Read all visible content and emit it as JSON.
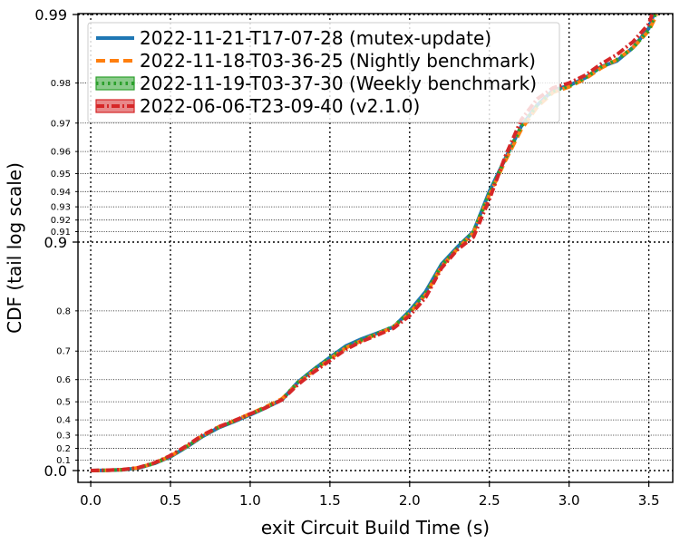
{
  "chart_data": {
    "type": "line",
    "xlabel": "exit Circuit Build Time (s)",
    "ylabel": "CDF (tail log scale)",
    "xlim": [
      -0.08,
      3.65
    ],
    "y_scale": "tail-log",
    "y_range": [
      0.0,
      0.99
    ],
    "x_ticks": [
      "0.0",
      "0.5",
      "1.0",
      "1.5",
      "2.0",
      "2.5",
      "3.0",
      "3.5"
    ],
    "x_tick_values": [
      0.0,
      0.5,
      1.0,
      1.5,
      2.0,
      2.5,
      3.0,
      3.5
    ],
    "y_major_ticks": [
      {
        "value": 0.0,
        "label": "0.0"
      },
      {
        "value": 0.9,
        "label": "0.9"
      },
      {
        "value": 0.99,
        "label": "0.99"
      }
    ],
    "y_minor_ticks": [
      {
        "value": 0.1,
        "label": "0.1"
      },
      {
        "value": 0.2,
        "label": "0.2"
      },
      {
        "value": 0.3,
        "label": "0.3"
      },
      {
        "value": 0.4,
        "label": "0.4"
      },
      {
        "value": 0.5,
        "label": "0.5"
      },
      {
        "value": 0.6,
        "label": "0.6"
      },
      {
        "value": 0.7,
        "label": "0.7"
      },
      {
        "value": 0.8,
        "label": "0.8"
      },
      {
        "value": 0.91,
        "label": "0.91"
      },
      {
        "value": 0.92,
        "label": "0.92"
      },
      {
        "value": 0.93,
        "label": "0.93"
      },
      {
        "value": 0.94,
        "label": "0.94"
      },
      {
        "value": 0.95,
        "label": "0.95"
      },
      {
        "value": 0.96,
        "label": "0.96"
      },
      {
        "value": 0.97,
        "label": "0.97"
      },
      {
        "value": 0.98,
        "label": "0.98"
      }
    ],
    "grid": true,
    "legend_position": "top-left",
    "series": [
      {
        "name": "2022-11-21-T17-07-28 (mutex-update)",
        "color": "#1f77b4",
        "style": "solid",
        "points": [
          [
            0.0,
            0.0
          ],
          [
            0.1,
            0.003
          ],
          [
            0.2,
            0.008
          ],
          [
            0.3,
            0.025
          ],
          [
            0.4,
            0.07
          ],
          [
            0.5,
            0.13
          ],
          [
            0.6,
            0.21
          ],
          [
            0.7,
            0.29
          ],
          [
            0.8,
            0.35
          ],
          [
            0.9,
            0.39
          ],
          [
            1.0,
            0.43
          ],
          [
            1.1,
            0.47
          ],
          [
            1.2,
            0.51
          ],
          [
            1.3,
            0.59
          ],
          [
            1.4,
            0.64
          ],
          [
            1.5,
            0.68
          ],
          [
            1.6,
            0.715
          ],
          [
            1.7,
            0.735
          ],
          [
            1.8,
            0.75
          ],
          [
            1.9,
            0.765
          ],
          [
            2.0,
            0.8
          ],
          [
            2.1,
            0.835
          ],
          [
            2.2,
            0.875
          ],
          [
            2.3,
            0.895
          ],
          [
            2.4,
            0.91
          ],
          [
            2.5,
            0.94
          ],
          [
            2.6,
            0.957
          ],
          [
            2.7,
            0.969
          ],
          [
            2.8,
            0.975
          ],
          [
            2.9,
            0.9785
          ],
          [
            3.0,
            0.9795
          ],
          [
            3.1,
            0.981
          ],
          [
            3.2,
            0.983
          ],
          [
            3.3,
            0.984
          ],
          [
            3.4,
            0.986
          ],
          [
            3.5,
            0.9885
          ],
          [
            3.53,
            0.99
          ]
        ]
      },
      {
        "name": "2022-11-18-T03-36-25 (Nightly benchmark)",
        "color": "#ff7f0e",
        "style": "dashed",
        "points": [
          [
            0.0,
            0.0
          ],
          [
            0.1,
            0.003
          ],
          [
            0.2,
            0.009
          ],
          [
            0.3,
            0.027
          ],
          [
            0.4,
            0.072
          ],
          [
            0.5,
            0.135
          ],
          [
            0.6,
            0.215
          ],
          [
            0.7,
            0.295
          ],
          [
            0.8,
            0.355
          ],
          [
            0.9,
            0.395
          ],
          [
            1.0,
            0.435
          ],
          [
            1.1,
            0.475
          ],
          [
            1.2,
            0.515
          ],
          [
            1.3,
            0.585
          ],
          [
            1.4,
            0.635
          ],
          [
            1.5,
            0.675
          ],
          [
            1.6,
            0.71
          ],
          [
            1.7,
            0.73
          ],
          [
            1.8,
            0.748
          ],
          [
            1.9,
            0.765
          ],
          [
            2.0,
            0.795
          ],
          [
            2.1,
            0.83
          ],
          [
            2.2,
            0.872
          ],
          [
            2.3,
            0.893
          ],
          [
            2.4,
            0.909
          ],
          [
            2.5,
            0.938
          ],
          [
            2.6,
            0.956
          ],
          [
            2.7,
            0.968
          ],
          [
            2.8,
            0.9745
          ],
          [
            2.9,
            0.978
          ],
          [
            3.0,
            0.9792
          ],
          [
            3.1,
            0.9808
          ],
          [
            3.2,
            0.9828
          ],
          [
            3.3,
            0.9842
          ],
          [
            3.4,
            0.986
          ],
          [
            3.5,
            0.9882
          ],
          [
            3.55,
            0.99
          ]
        ]
      },
      {
        "name": "2022-11-19-T03-37-30 (Weekly benchmark)",
        "color": "#2ca02c",
        "style": "dotted",
        "points": [
          [
            0.0,
            0.0
          ],
          [
            0.1,
            0.003
          ],
          [
            0.2,
            0.008
          ],
          [
            0.3,
            0.026
          ],
          [
            0.4,
            0.071
          ],
          [
            0.5,
            0.133
          ],
          [
            0.6,
            0.212
          ],
          [
            0.7,
            0.292
          ],
          [
            0.8,
            0.352
          ],
          [
            0.9,
            0.392
          ],
          [
            1.0,
            0.432
          ],
          [
            1.1,
            0.472
          ],
          [
            1.2,
            0.512
          ],
          [
            1.3,
            0.59
          ],
          [
            1.4,
            0.64
          ],
          [
            1.5,
            0.68
          ],
          [
            1.6,
            0.712
          ],
          [
            1.7,
            0.733
          ],
          [
            1.8,
            0.749
          ],
          [
            1.9,
            0.766
          ],
          [
            2.0,
            0.798
          ],
          [
            2.1,
            0.833
          ],
          [
            2.2,
            0.874
          ],
          [
            2.3,
            0.894
          ],
          [
            2.4,
            0.91
          ],
          [
            2.5,
            0.939
          ],
          [
            2.6,
            0.957
          ],
          [
            2.7,
            0.969
          ],
          [
            2.8,
            0.975
          ],
          [
            2.9,
            0.9783
          ],
          [
            3.0,
            0.9794
          ],
          [
            3.1,
            0.981
          ],
          [
            3.2,
            0.983
          ],
          [
            3.3,
            0.9842
          ],
          [
            3.4,
            0.986
          ],
          [
            3.5,
            0.9883
          ],
          [
            3.54,
            0.99
          ]
        ]
      },
      {
        "name": "2022-06-06-T23-09-40 (v2.1.0)",
        "color": "#d62728",
        "style": "dashdot",
        "points": [
          [
            0.0,
            0.0
          ],
          [
            0.1,
            0.004
          ],
          [
            0.2,
            0.01
          ],
          [
            0.3,
            0.03
          ],
          [
            0.4,
            0.075
          ],
          [
            0.5,
            0.14
          ],
          [
            0.6,
            0.22
          ],
          [
            0.7,
            0.3
          ],
          [
            0.8,
            0.355
          ],
          [
            0.9,
            0.395
          ],
          [
            1.0,
            0.435
          ],
          [
            1.1,
            0.47
          ],
          [
            1.2,
            0.51
          ],
          [
            1.3,
            0.58
          ],
          [
            1.4,
            0.63
          ],
          [
            1.5,
            0.67
          ],
          [
            1.6,
            0.705
          ],
          [
            1.7,
            0.728
          ],
          [
            1.8,
            0.745
          ],
          [
            1.9,
            0.762
          ],
          [
            2.0,
            0.79
          ],
          [
            2.1,
            0.825
          ],
          [
            2.2,
            0.87
          ],
          [
            2.3,
            0.892
          ],
          [
            2.4,
            0.905
          ],
          [
            2.5,
            0.935
          ],
          [
            2.6,
            0.958
          ],
          [
            2.7,
            0.971
          ],
          [
            2.8,
            0.9765
          ],
          [
            2.9,
            0.979
          ],
          [
            3.0,
            0.98
          ],
          [
            3.1,
            0.9815
          ],
          [
            3.2,
            0.9835
          ],
          [
            3.3,
            0.985
          ],
          [
            3.4,
            0.9868
          ],
          [
            3.5,
            0.989
          ],
          [
            3.52,
            0.99
          ]
        ]
      }
    ]
  }
}
